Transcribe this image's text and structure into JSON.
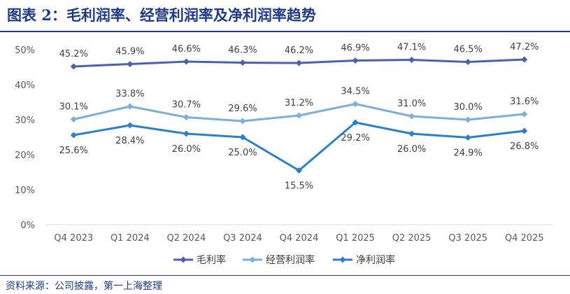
{
  "figure": {
    "title": "图表 2：毛利润率、经营利润率及净利润率趋势",
    "source": "资料来源：公司披露，第一上海整理"
  },
  "colors": {
    "title": "#1f3a8a",
    "gross": "#4a63a8",
    "operating": "#7eaedb",
    "net": "#2f7fc8"
  },
  "chart_data": {
    "type": "line",
    "categories": [
      "Q4 2023",
      "Q1 2024",
      "Q2 2024",
      "Q3 2024",
      "Q4 2024",
      "Q1 2025",
      "Q2 2025",
      "Q3 2025",
      "Q4 2025"
    ],
    "yticks": [
      "0%",
      "10%",
      "20%",
      "30%",
      "40%",
      "50%"
    ],
    "ylim": [
      0,
      50
    ],
    "grid": false,
    "legend_position": "bottom",
    "series": [
      {
        "name": "毛利率",
        "values": [
          45.2,
          45.9,
          46.6,
          46.3,
          46.2,
          46.9,
          47.1,
          46.5,
          47.2
        ],
        "labels": [
          "45.2%",
          "45.9%",
          "46.6%",
          "46.3%",
          "46.2%",
          "46.9%",
          "47.1%",
          "46.5%",
          "47.2%"
        ]
      },
      {
        "name": "经营利润率",
        "values": [
          30.1,
          33.8,
          30.7,
          29.6,
          31.2,
          34.5,
          31.0,
          30.0,
          31.6
        ],
        "labels": [
          "30.1%",
          "33.8%",
          "30.7%",
          "29.6%",
          "31.2%",
          "34.5%",
          "31.0%",
          "30.0%",
          "31.6%"
        ]
      },
      {
        "name": "净利润率",
        "values": [
          25.6,
          28.4,
          26.0,
          25.0,
          15.5,
          29.2,
          26.0,
          24.9,
          26.8
        ],
        "labels": [
          "25.6%",
          "28.4%",
          "26.0%",
          "25.0%",
          "15.5%",
          "29.2%",
          "26.0%",
          "24.9%",
          "26.8%"
        ]
      }
    ]
  }
}
